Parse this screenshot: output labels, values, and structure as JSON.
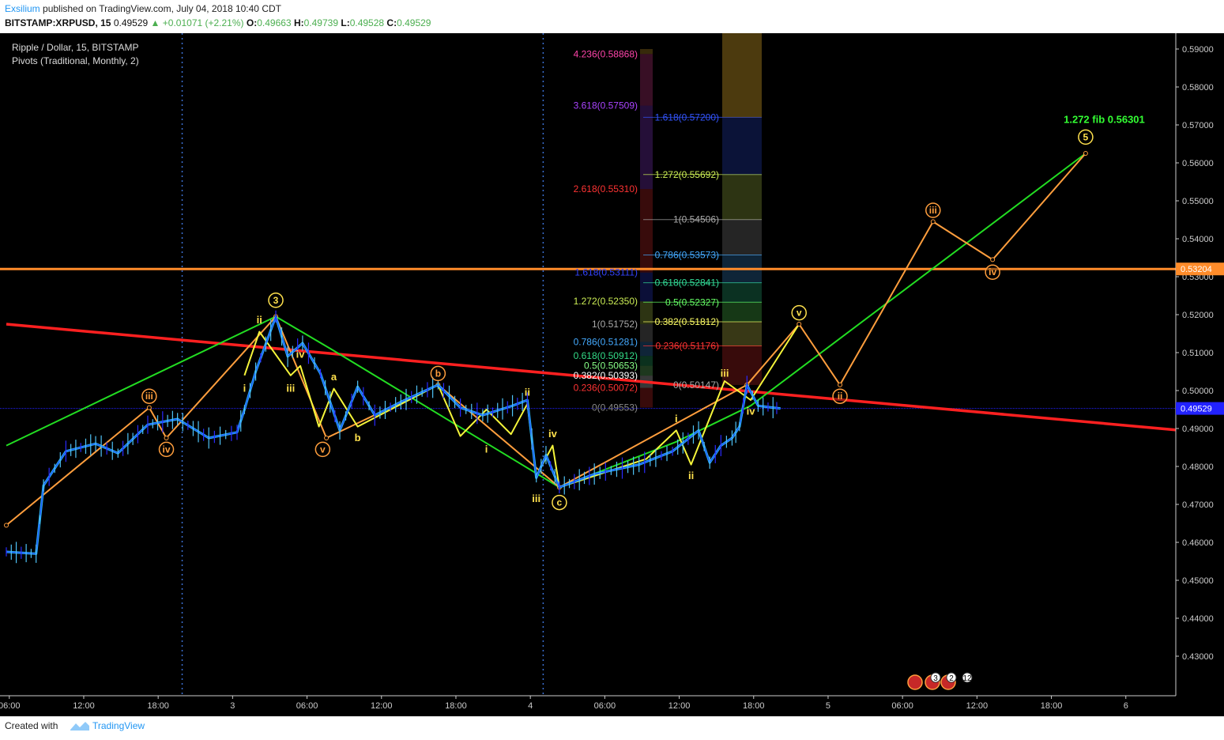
{
  "header": {
    "author": "Exsilium",
    "published_text": "published on TradingView.com, July 04, 2018 10:40 CDT",
    "symbol": "BITSTAMP:XRPUSD, 15",
    "price": "0.49529",
    "change": "+0.01071 (+2.21%)",
    "open_label": "O:",
    "open": "0.49663",
    "high_label": "H:",
    "high": "0.49739",
    "low_label": "L:",
    "low": "0.49528",
    "close_label": "C:",
    "close": "0.49529"
  },
  "legend": {
    "title": "Ripple / Dollar, 15, BITSTAMP",
    "indicator": "Pivots (Traditional, Monthly, 2)"
  },
  "footer": {
    "created_with": "Created with",
    "brand": "TradingView"
  },
  "chart_data": {
    "type": "candlestick",
    "y_axis_ticks": [
      "0.59000",
      "0.58000",
      "0.57000",
      "0.56000",
      "0.55000",
      "0.54000",
      "0.53000",
      "0.52000",
      "0.51000",
      "0.50000",
      "0.49000",
      "0.48000",
      "0.47000",
      "0.46000",
      "0.45000",
      "0.44000",
      "0.43000"
    ],
    "ylim": [
      0.4215,
      0.5955
    ],
    "x_axis_ticks": [
      "06:00",
      "12:00",
      "18:00",
      "3",
      "06:00",
      "12:00",
      "18:00",
      "4",
      "06:00",
      "12:00",
      "18:00",
      "5",
      "06:00",
      "12:00",
      "18:00",
      "6"
    ],
    "price_labels": [
      {
        "value": 0.53204,
        "text": "0.53204",
        "color": "#ff8c2a"
      },
      {
        "value": 0.49529,
        "text": "0.49529",
        "color": "#2222ff"
      }
    ],
    "horizontal_level": {
      "value": 0.53204,
      "color": "#ff8c2a"
    },
    "current_price_line": {
      "value": 0.49529,
      "color": "#2222ff"
    },
    "trendline": {
      "color": "#ff2020",
      "from": [
        0,
        0.5175
      ],
      "to": [
        15.78,
        0.4895
      ]
    },
    "price_path": [
      [
        0,
        0.4575
      ],
      [
        0.4,
        0.457
      ],
      [
        0.5,
        0.475
      ],
      [
        0.8,
        0.484
      ],
      [
        1.2,
        0.486
      ],
      [
        1.5,
        0.4835
      ],
      [
        1.9,
        0.491
      ],
      [
        2.3,
        0.4925
      ],
      [
        2.72,
        0.4875
      ],
      [
        3.1,
        0.489
      ],
      [
        3.2,
        0.495
      ],
      [
        3.35,
        0.505
      ],
      [
        3.62,
        0.5195
      ],
      [
        3.78,
        0.509
      ],
      [
        3.98,
        0.5125
      ],
      [
        4.22,
        0.5045
      ],
      [
        4.48,
        0.4895
      ],
      [
        4.72,
        0.501
      ],
      [
        4.95,
        0.4935
      ],
      [
        5.3,
        0.497
      ],
      [
        5.8,
        0.5015
      ],
      [
        6.1,
        0.4955
      ],
      [
        6.4,
        0.4935
      ],
      [
        6.8,
        0.496
      ],
      [
        7.0,
        0.4975
      ],
      [
        7.12,
        0.477
      ],
      [
        7.25,
        0.483
      ],
      [
        7.43,
        0.4745
      ],
      [
        7.9,
        0.478
      ],
      [
        8.5,
        0.4805
      ],
      [
        8.95,
        0.484
      ],
      [
        9.3,
        0.4895
      ],
      [
        9.45,
        0.481
      ],
      [
        9.6,
        0.4855
      ],
      [
        9.75,
        0.4875
      ],
      [
        9.85,
        0.4905
      ],
      [
        9.95,
        0.5015
      ],
      [
        10.1,
        0.496
      ],
      [
        10.3,
        0.4955
      ],
      [
        10.4,
        0.49529
      ]
    ],
    "fib_retracement": [
      {
        "level": "0.236",
        "value": 0.50072,
        "color": "#ff3333"
      },
      {
        "level": "0.382",
        "value": 0.50393,
        "color": "#ffffff"
      },
      {
        "level": "0.5",
        "value": 0.50653,
        "color": "#88ff88"
      },
      {
        "level": "0.618",
        "value": 0.50912,
        "color": "#33dd88"
      },
      {
        "level": "0.786",
        "value": 0.51281,
        "color": "#44aaff"
      },
      {
        "level": "1",
        "value": 0.51752,
        "color": "#aaaaaa"
      },
      {
        "level": "1.272",
        "value": 0.5235,
        "color": "#ccee55"
      },
      {
        "level": "1.618",
        "value": 0.53111,
        "color": "#3344ff"
      },
      {
        "level": "2.618",
        "value": 0.5531,
        "color": "#ff3333"
      },
      {
        "level": "3.618",
        "value": 0.57509,
        "color": "#aa44ff"
      },
      {
        "level": "4.236",
        "value": 0.58868,
        "color": "#ff44aa"
      }
    ],
    "fib_retracement_zero": {
      "level": "0",
      "value": 0.49553,
      "color": "#888888"
    },
    "fib_projection": [
      {
        "level": "0",
        "value": 0.50147,
        "color": "#aaaaaa"
      },
      {
        "level": "0.236",
        "value": 0.51176,
        "color": "#ff3333"
      },
      {
        "level": "0.382",
        "value": 0.51812,
        "color": "#ffff66"
      },
      {
        "level": "0.5",
        "value": 0.52327,
        "color": "#66ff66"
      },
      {
        "level": "0.618",
        "value": 0.52841,
        "color": "#33dd99"
      },
      {
        "level": "0.786",
        "value": 0.53573,
        "color": "#44aaff"
      },
      {
        "level": "1",
        "value": 0.54506,
        "color": "#aaaaaa"
      },
      {
        "level": "1.272",
        "value": 0.55692,
        "color": "#ccee55"
      },
      {
        "level": "1.618",
        "value": 0.572,
        "color": "#3355ff"
      }
    ],
    "annotation": {
      "text": "1.272 fib 0.56301",
      "color": "#33ff33",
      "x": 14.75,
      "y": 0.5705
    },
    "green_channel": [
      [
        0,
        0.4855
      ],
      [
        3.62,
        0.5195
      ],
      [
        4.4,
        0.5105
      ],
      [
        7.43,
        0.4745
      ],
      [
        9.0,
        0.4865
      ],
      [
        10.0,
        0.496
      ],
      [
        14.5,
        0.5625
      ]
    ],
    "orange_waves": [
      [
        0,
        0.4645
      ],
      [
        1.92,
        0.4955
      ],
      [
        2.15,
        0.4875
      ],
      [
        3.62,
        0.5195
      ],
      [
        4.3,
        0.4875
      ],
      [
        5.8,
        0.5015
      ],
      [
        7.43,
        0.4745
      ],
      [
        9.95,
        0.5015
      ],
      [
        10.65,
        0.5175
      ],
      [
        11.2,
        0.5015
      ],
      [
        12.45,
        0.5445
      ],
      [
        13.25,
        0.5345
      ],
      [
        14.5,
        0.5625
      ]
    ],
    "yellow_waves": [
      [
        3.2,
        0.504
      ],
      [
        3.4,
        0.5155
      ],
      [
        3.82,
        0.504
      ],
      [
        3.95,
        0.5065
      ],
      [
        4.2,
        0.4905
      ],
      [
        4.4,
        0.5005
      ],
      [
        4.72,
        0.4905
      ],
      [
        5.8,
        0.5015
      ],
      [
        6.1,
        0.488
      ],
      [
        6.45,
        0.495
      ],
      [
        6.78,
        0.4885
      ],
      [
        7.0,
        0.4965
      ],
      [
        7.12,
        0.4775
      ],
      [
        7.34,
        0.4855
      ],
      [
        7.43,
        0.4745
      ],
      [
        8.6,
        0.482
      ],
      [
        9.0,
        0.4895
      ],
      [
        9.2,
        0.4805
      ],
      [
        9.65,
        0.5025
      ],
      [
        10.0,
        0.4975
      ],
      [
        10.65,
        0.5175
      ]
    ],
    "wave_labels": [
      {
        "text": "iii",
        "x": 1.92,
        "y": 0.4985,
        "style": "circle",
        "color": "#ff9e3d"
      },
      {
        "text": "iv",
        "x": 2.15,
        "y": 0.4845,
        "style": "circle",
        "color": "#ff9e3d"
      },
      {
        "text": "3",
        "x": 3.62,
        "y": 0.5238,
        "style": "circle",
        "color": "#ffe14d"
      },
      {
        "text": "ii",
        "x": 3.4,
        "y": 0.5185,
        "style": "plain",
        "color": "#ffe14d"
      },
      {
        "text": "i",
        "x": 3.2,
        "y": 0.5005,
        "style": "plain",
        "color": "#ffe14d"
      },
      {
        "text": "iv",
        "x": 3.95,
        "y": 0.5095,
        "style": "plain",
        "color": "#ffe14d"
      },
      {
        "text": "iii",
        "x": 3.82,
        "y": 0.5005,
        "style": "plain",
        "color": "#ffe14d"
      },
      {
        "text": "a",
        "x": 4.4,
        "y": 0.5035,
        "style": "plain",
        "color": "#ffe14d"
      },
      {
        "text": "v",
        "x": 4.25,
        "y": 0.4845,
        "style": "circle",
        "color": "#ff9e3d"
      },
      {
        "text": "b",
        "x": 4.72,
        "y": 0.4875,
        "style": "plain",
        "color": "#ffe14d"
      },
      {
        "text": "b",
        "x": 5.8,
        "y": 0.5045,
        "style": "circle",
        "color": "#ff9e3d"
      },
      {
        "text": "ii",
        "x": 7.0,
        "y": 0.4995,
        "style": "plain",
        "color": "#ffe14d"
      },
      {
        "text": "i",
        "x": 6.45,
        "y": 0.4845,
        "style": "plain",
        "color": "#ffe14d"
      },
      {
        "text": "iv",
        "x": 7.34,
        "y": 0.4885,
        "style": "plain",
        "color": "#ffe14d"
      },
      {
        "text": "iii",
        "x": 7.12,
        "y": 0.4715,
        "style": "plain",
        "color": "#ffe14d"
      },
      {
        "text": "c",
        "x": 7.43,
        "y": 0.4705,
        "style": "circle",
        "color": "#ffe14d"
      },
      {
        "text": "i",
        "x": 9.0,
        "y": 0.4925,
        "style": "plain",
        "color": "#ffe14d"
      },
      {
        "text": "ii",
        "x": 9.2,
        "y": 0.4775,
        "style": "plain",
        "color": "#ffe14d"
      },
      {
        "text": "iii",
        "x": 9.65,
        "y": 0.5045,
        "style": "plain",
        "color": "#ffe14d"
      },
      {
        "text": "iv",
        "x": 10.0,
        "y": 0.4945,
        "style": "plain",
        "color": "#ffe14d"
      },
      {
        "text": "v",
        "x": 10.65,
        "y": 0.5205,
        "style": "circle",
        "color": "#ffe14d"
      },
      {
        "text": "ii",
        "x": 11.2,
        "y": 0.4985,
        "style": "circle",
        "color": "#ff9e3d"
      },
      {
        "text": "iii",
        "x": 12.45,
        "y": 0.5475,
        "style": "circle",
        "color": "#ff9e3d"
      },
      {
        "text": "iv",
        "x": 13.25,
        "y": 0.5312,
        "style": "circle",
        "color": "#ff9e3d"
      },
      {
        "text": "5",
        "x": 14.5,
        "y": 0.5668,
        "style": "circle",
        "color": "#ffe14d"
      }
    ],
    "vertical_separators": [
      2.15,
      7.0
    ],
    "event_markers": [
      "3",
      "2",
      "12"
    ]
  }
}
